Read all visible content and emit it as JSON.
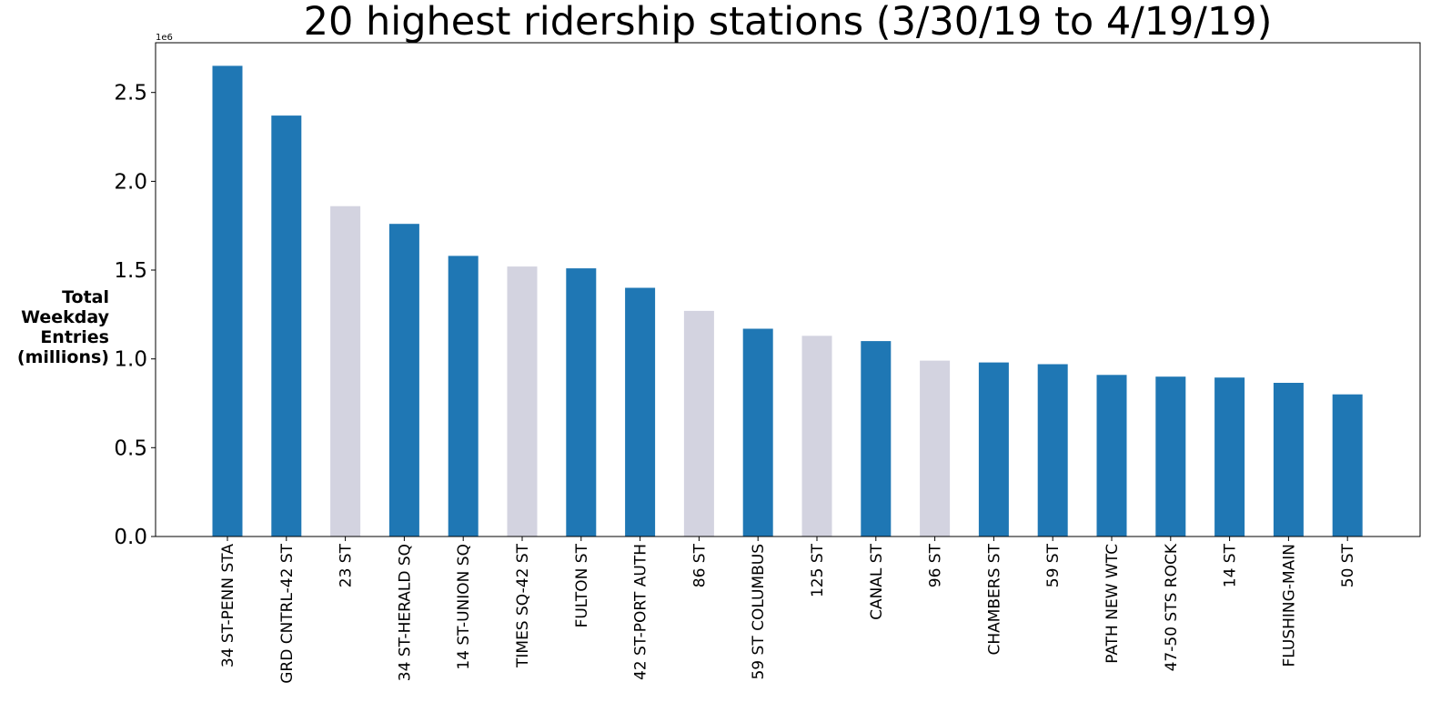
{
  "chart_data": {
    "type": "bar",
    "title": "20 highest ridership stations (3/30/19 to 4/19/19)",
    "xlabel": "",
    "ylabel_lines": [
      "Total",
      "Weekday",
      "Entries",
      "(millions)"
    ],
    "y_offset_label": "1e6",
    "ylim": [
      0,
      2.78
    ],
    "yticks": [
      0.0,
      0.5,
      1.0,
      1.5,
      2.0,
      2.5
    ],
    "ytick_labels": [
      "0.0",
      "0.5",
      "1.0",
      "1.5",
      "2.0",
      "2.5"
    ],
    "grid": false,
    "categories": [
      "34 ST-PENN STA",
      "GRD CNTRL-42 ST",
      "23 ST",
      "34 ST-HERALD SQ",
      "14 ST-UNION SQ",
      "TIMES SQ-42 ST",
      "FULTON ST",
      "42 ST-PORT AUTH",
      "86 ST",
      "59 ST COLUMBUS",
      "125 ST",
      "CANAL ST",
      "96 ST",
      "CHAMBERS ST",
      "59 ST",
      "PATH NEW WTC",
      "47-50 STS ROCK",
      "14 ST",
      "FLUSHING-MAIN",
      "50 ST"
    ],
    "values": [
      2.65,
      2.37,
      1.86,
      1.76,
      1.58,
      1.52,
      1.51,
      1.4,
      1.27,
      1.17,
      1.13,
      1.1,
      0.99,
      0.98,
      0.97,
      0.91,
      0.9,
      0.895,
      0.865,
      0.8
    ],
    "highlight": [
      false,
      false,
      true,
      false,
      false,
      true,
      false,
      false,
      true,
      false,
      true,
      false,
      true,
      false,
      false,
      false,
      false,
      false,
      false,
      false
    ],
    "colors": {
      "primary": "#1f77b4",
      "highlight": "#d3d3e0",
      "axis": "#000000",
      "text": "#000000"
    }
  }
}
